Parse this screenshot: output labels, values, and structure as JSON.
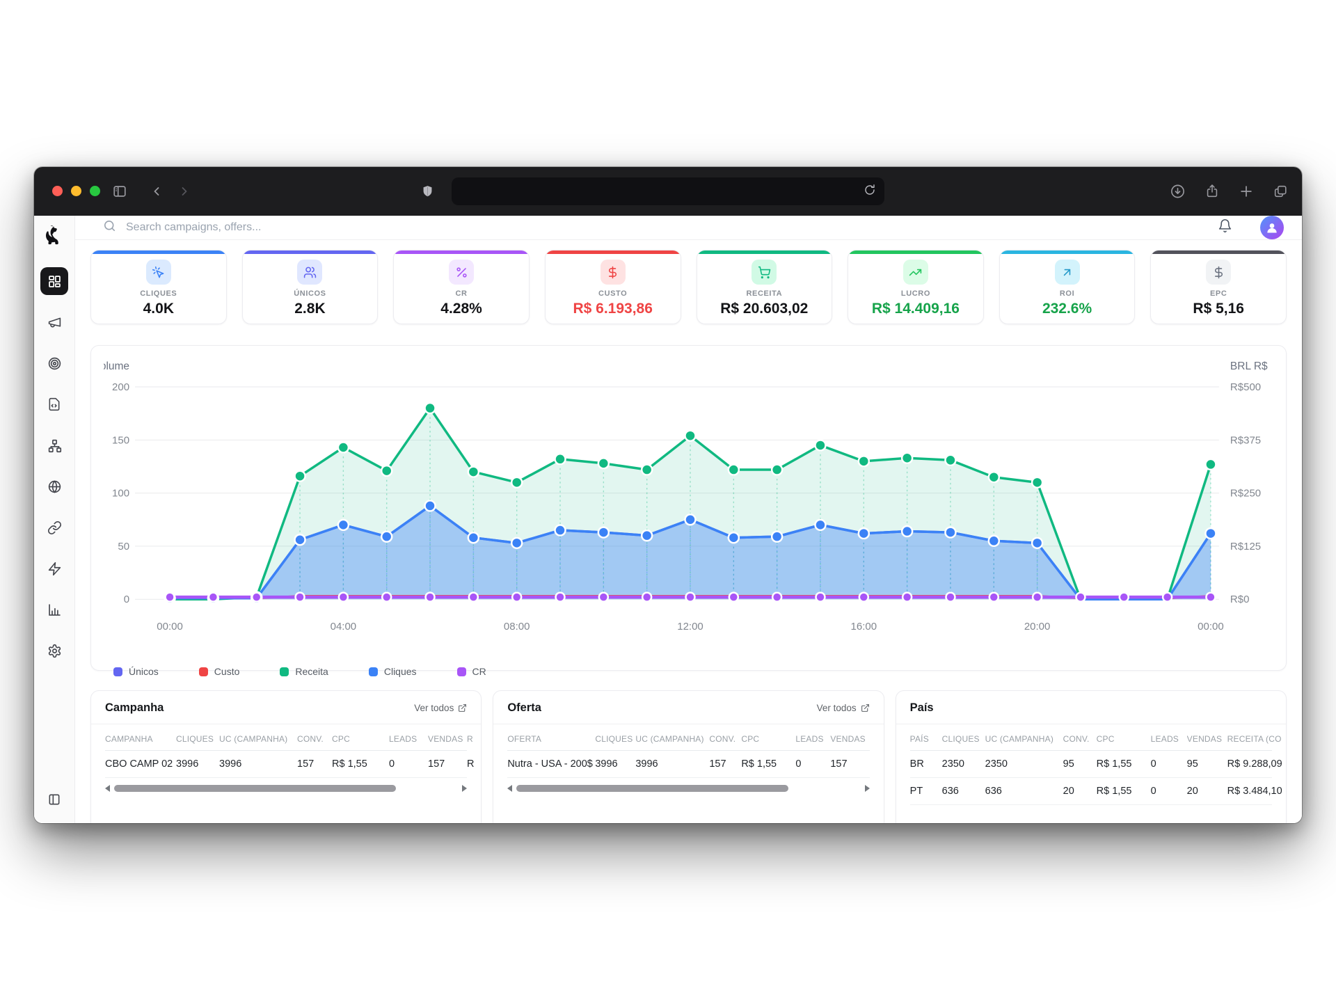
{
  "header": {
    "search_placeholder": "Search campaigns, offers..."
  },
  "kpis": [
    {
      "label": "CLIQUES",
      "value": "4.0K",
      "accent": "#3b82f6",
      "icon": "cursor-click",
      "icon_bg": "#dbeafe",
      "icon_color": "#3b82f6",
      "value_color": "#131417"
    },
    {
      "label": "ÚNICOS",
      "value": "2.8K",
      "accent": "#6366f1",
      "icon": "users",
      "icon_bg": "#e0e7ff",
      "icon_color": "#6366f1",
      "value_color": "#131417"
    },
    {
      "label": "CR",
      "value": "4.28%",
      "accent": "#a855f7",
      "icon": "percent",
      "icon_bg": "#f3e8ff",
      "icon_color": "#a855f7",
      "value_color": "#131417"
    },
    {
      "label": "CUSTO",
      "value": "R$ 6.193,86",
      "accent": "#ef4444",
      "icon": "dollar",
      "icon_bg": "#fee2e2",
      "icon_color": "#ef4444",
      "value_color": "#ef4444"
    },
    {
      "label": "RECEITA",
      "value": "R$ 20.603,02",
      "accent": "#10b981",
      "icon": "cart",
      "icon_bg": "#d1fae5",
      "icon_color": "#10b981",
      "value_color": "#131417"
    },
    {
      "label": "LUCRO",
      "value": "R$ 14.409,16",
      "accent": "#22c55e",
      "icon": "trending-up",
      "icon_bg": "#dcfce7",
      "icon_color": "#22c55e",
      "value_color": "#16a34a"
    },
    {
      "label": "ROI",
      "value": "232.6%",
      "accent": "#2ab5e0",
      "icon": "arrow-up-right",
      "icon_bg": "#d3f3fc",
      "icon_color": "#2499c9",
      "value_color": "#16a34a"
    },
    {
      "label": "EPC",
      "value": "R$ 5,16",
      "accent": "#52525b",
      "icon": "dollar",
      "icon_bg": "#f1f3f5",
      "icon_color": "#6b7280",
      "value_color": "#131417"
    }
  ],
  "chart_data": {
    "type": "area",
    "x_labels": [
      "00:00",
      "04:00",
      "08:00",
      "12:00",
      "16:00",
      "20:00",
      "00:00"
    ],
    "x_label_positions": [
      0,
      4,
      8,
      12,
      16,
      20,
      24
    ],
    "left_axis": {
      "title": "Volume",
      "ticks": [
        0,
        50,
        100,
        150,
        200
      ],
      "max": 200
    },
    "right_axis": {
      "title": "BRL R$",
      "tick_labels": [
        "R$0",
        "R$125",
        "R$250",
        "R$375",
        "R$500"
      ]
    },
    "grid": true,
    "legend_position": "bottom-left",
    "series": [
      {
        "name": "Únicos",
        "color": "#6366f1",
        "width": 3.5,
        "markers": false,
        "drops": false,
        "values": [
          1,
          1,
          1,
          56,
          70,
          59,
          88,
          58,
          53,
          65,
          63,
          60,
          75,
          58,
          59,
          70,
          62,
          64,
          63,
          55,
          53,
          0,
          0,
          0,
          62
        ]
      },
      {
        "name": "Custo",
        "color": "#ef4444",
        "width": 3,
        "markers": false,
        "drops": false,
        "values": [
          1,
          1,
          1,
          3,
          3,
          3,
          3,
          3,
          3,
          3,
          3,
          3,
          3,
          3,
          3,
          3,
          3,
          3,
          3,
          3,
          3,
          1,
          1,
          1,
          3
        ]
      },
      {
        "name": "Receita",
        "color": "#10b981",
        "width": 3.5,
        "markers": true,
        "drops": true,
        "fill": "rgba(16,185,129,0.12)",
        "values": [
          0,
          0,
          2,
          116,
          143,
          121,
          180,
          120,
          110,
          132,
          128,
          122,
          154,
          122,
          122,
          145,
          130,
          133,
          131,
          115,
          110,
          0,
          0,
          0,
          127
        ]
      },
      {
        "name": "Cliques",
        "color": "#3b82f6",
        "width": 3.5,
        "markers": true,
        "drops": true,
        "fill": "rgba(59,130,246,0.38)",
        "values": [
          1,
          1,
          1,
          56,
          70,
          59,
          88,
          58,
          53,
          65,
          63,
          60,
          75,
          58,
          59,
          70,
          62,
          64,
          63,
          55,
          53,
          0,
          0,
          0,
          62
        ]
      },
      {
        "name": "CR",
        "color": "#a855f7",
        "width": 4.5,
        "markers": true,
        "drops": false,
        "values": [
          2,
          2,
          2,
          2,
          2,
          2,
          2,
          2,
          2,
          2,
          2,
          2,
          2,
          2,
          2,
          2,
          2,
          2,
          2,
          2,
          2,
          2,
          2,
          2,
          2
        ]
      }
    ]
  },
  "tables": [
    {
      "title": "Campanha",
      "link": "Ver todos",
      "has_scrollbar": true,
      "thumb": "82%",
      "headers": [
        "CAMPANHA",
        "CLIQUES",
        "UC (CAMPANHA)",
        "CONV.",
        "CPC",
        "LEADS",
        "VENDAS",
        "R"
      ],
      "rows": [
        [
          "CBO CAMP 02",
          "3996",
          "3996",
          "157",
          "R$ 1,55",
          "0",
          "157",
          "R"
        ]
      ]
    },
    {
      "title": "Oferta",
      "link": "Ver todos",
      "has_scrollbar": true,
      "thumb": "79%",
      "headers": [
        "OFERTA",
        "CLIQUES",
        "UC (CAMPANHA)",
        "CONV.",
        "CPC",
        "LEADS",
        "VENDAS"
      ],
      "rows": [
        [
          "Nutra - USA - 200$",
          "3996",
          "3996",
          "157",
          "R$ 1,55",
          "0",
          "157"
        ]
      ]
    },
    {
      "title": "País",
      "link": "",
      "has_scrollbar": false,
      "thumb": "0",
      "headers": [
        "PAÍS",
        "CLIQUES",
        "UC (CAMPANHA)",
        "CONV.",
        "CPC",
        "LEADS",
        "VENDAS",
        "RECEITA (CO"
      ],
      "rows": [
        [
          "BR",
          "2350",
          "2350",
          "95",
          "R$ 1,55",
          "0",
          "95",
          "R$ 9.288,09"
        ],
        [
          "PT",
          "636",
          "636",
          "20",
          "R$ 1,55",
          "0",
          "20",
          "R$ 3.484,10"
        ]
      ]
    }
  ]
}
